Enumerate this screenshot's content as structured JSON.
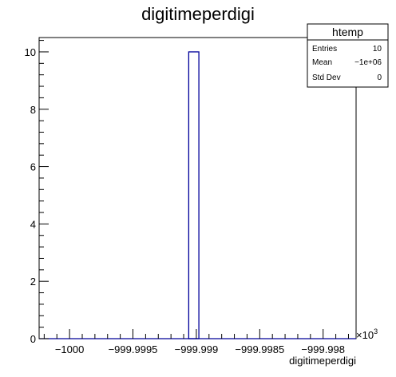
{
  "chart_data": {
    "type": "bar",
    "title": "digitimeperdigi",
    "xlabel": "digitimeperdigi",
    "ylabel": "",
    "x_exponent_label": "×10",
    "x_exponent_power": "3",
    "xlim": [
      -1000.00024,
      -999.99774
    ],
    "ylim": [
      0,
      10.5
    ],
    "xticks": [
      {
        "value": -1000,
        "label": "−1000"
      },
      {
        "value": -999.9995,
        "label": "−999.9995"
      },
      {
        "value": -999.999,
        "label": "−999.999"
      },
      {
        "value": -999.9985,
        "label": "−999.9985"
      },
      {
        "value": -999.998,
        "label": "−999.998"
      }
    ],
    "yticks": [
      {
        "value": 0,
        "label": "0"
      },
      {
        "value": 2,
        "label": "2"
      },
      {
        "value": 4,
        "label": "4"
      },
      {
        "value": 6,
        "label": "6"
      },
      {
        "value": 8,
        "label": "8"
      },
      {
        "value": 10,
        "label": "10"
      }
    ],
    "bars": [
      {
        "x0": -999.99906,
        "x1": -999.99898,
        "value": 10
      }
    ],
    "colors": {
      "bar": "#000099",
      "axis": "#000000",
      "background": "#ffffff"
    },
    "grid": false,
    "legend": "top-right"
  },
  "stats_box": {
    "title": "htemp",
    "rows": [
      {
        "label": "Entries",
        "value": "10"
      },
      {
        "label": "Mean",
        "value": "−1e+06"
      },
      {
        "label": "Std Dev",
        "value": "0"
      }
    ]
  }
}
